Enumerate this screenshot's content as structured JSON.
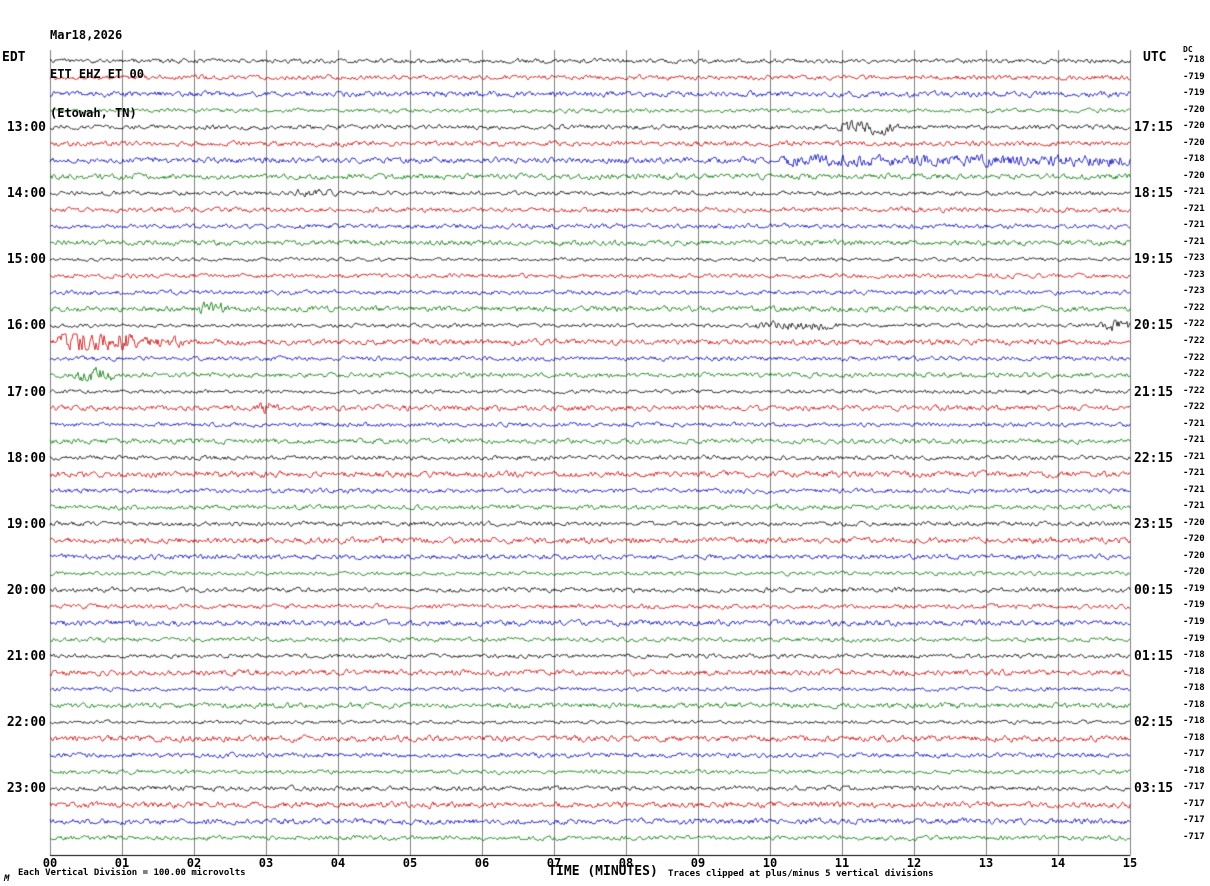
{
  "header": {
    "date": "Mar18,2026",
    "station": "ETT EHZ ET 00",
    "location": "(Etowah, TN)"
  },
  "axes": {
    "left_label": "EDT",
    "right_label": "UTC",
    "dc_label": "DC",
    "x_axis_title": "TIME (MINUTES)",
    "x_ticks": [
      "00",
      "01",
      "02",
      "03",
      "04",
      "05",
      "06",
      "07",
      "08",
      "09",
      "10",
      "11",
      "12",
      "13",
      "14",
      "15"
    ]
  },
  "footer": {
    "left_note": "Each Vertical Division =  100.00 microvolts",
    "right_note": "Traces clipped at plus/minus 5 vertical divisions",
    "logo": "M"
  },
  "chart_data": {
    "type": "line",
    "title": "Helicorder record ETT EHZ ET 00 (Etowah, TN) Mar18,2026",
    "x_range_minutes": [
      0,
      15
    ],
    "rows": 48,
    "minutes_per_row": 15,
    "first_row_edt": "12:00",
    "trace_colors": [
      "#000000",
      "#cc0000",
      "#0000bb",
      "#007700"
    ],
    "grid_color": "#808080",
    "hour_labels": [
      {
        "row": 4,
        "edt": "13:00",
        "utc": "17:15"
      },
      {
        "row": 8,
        "edt": "14:00",
        "utc": "18:15"
      },
      {
        "row": 12,
        "edt": "15:00",
        "utc": "19:15"
      },
      {
        "row": 16,
        "edt": "16:00",
        "utc": "20:15"
      },
      {
        "row": 20,
        "edt": "17:00",
        "utc": "21:15"
      },
      {
        "row": 24,
        "edt": "18:00",
        "utc": "22:15"
      },
      {
        "row": 28,
        "edt": "19:00",
        "utc": "23:15"
      },
      {
        "row": 32,
        "edt": "20:00",
        "utc": "00:15"
      },
      {
        "row": 36,
        "edt": "21:00",
        "utc": "01:15"
      },
      {
        "row": 40,
        "edt": "22:00",
        "utc": "02:15"
      },
      {
        "row": 44,
        "edt": "23:00",
        "utc": "03:15"
      }
    ],
    "dc_values": [
      "-718",
      "-719",
      "-719",
      "-720",
      "-720",
      "-720",
      "-718",
      "-720",
      "-721",
      "-721",
      "-721",
      "-721",
      "-723",
      "-723",
      "-723",
      "-722",
      "-722",
      "-722",
      "-722",
      "-722",
      "-722",
      "-722",
      "-721",
      "-721",
      "-721",
      "-721",
      "-721",
      "-721",
      "-720",
      "-720",
      "-720",
      "-720",
      "-719",
      "-719",
      "-719",
      "-719",
      "-718",
      "-718",
      "-718",
      "-718",
      "-718",
      "-718",
      "-717",
      "-718",
      "-717",
      "-717",
      "-717",
      "-717"
    ],
    "events": [
      {
        "row": 4,
        "start": 11.0,
        "end": 11.7,
        "amp": 3.0
      },
      {
        "row": 6,
        "start": 10.2,
        "end": 15.0,
        "amp": 2.0
      },
      {
        "row": 8,
        "start": 3.4,
        "end": 3.9,
        "amp": 1.8
      },
      {
        "row": 15,
        "start": 2.1,
        "end": 2.4,
        "amp": 2.6
      },
      {
        "row": 16,
        "start": 9.8,
        "end": 10.9,
        "amp": 2.2
      },
      {
        "row": 16,
        "start": 14.6,
        "end": 15.0,
        "amp": 3.5
      },
      {
        "row": 17,
        "start": 0.15,
        "end": 1.1,
        "amp": 4.5
      },
      {
        "row": 17,
        "start": 1.1,
        "end": 1.8,
        "amp": 2.0
      },
      {
        "row": 19,
        "start": 0.4,
        "end": 0.85,
        "amp": 3.0
      },
      {
        "row": 21,
        "start": 2.9,
        "end": 3.15,
        "amp": 2.5
      }
    ],
    "noise_seed": 20260318
  }
}
